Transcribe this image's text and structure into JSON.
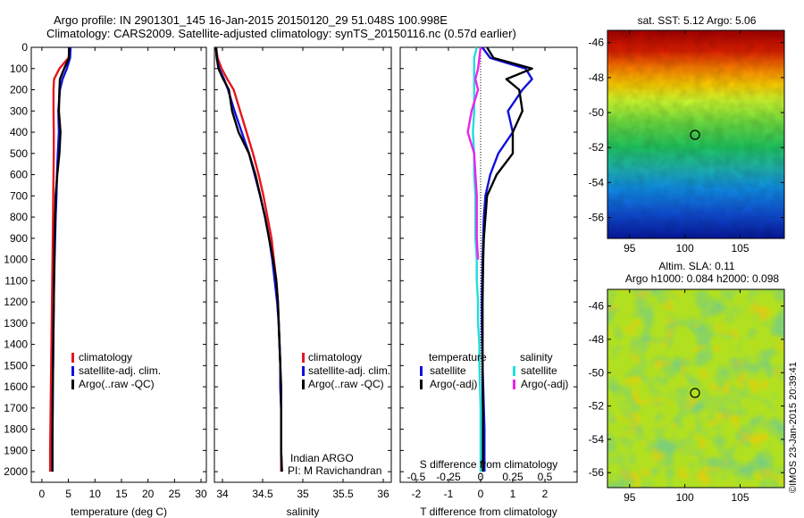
{
  "title": {
    "line1": "Argo profile: IN 2901301_145 16-Jan-2015 20150120_29 51.048S 100.998E",
    "line2": "Climatology: CARS2009. Satellite-adjusted climatology: synTS_20150116.nc (0.57d earlier)"
  },
  "depth_axis": {
    "ticks": [
      0,
      100,
      200,
      300,
      400,
      500,
      600,
      700,
      800,
      900,
      1000,
      1100,
      1200,
      1300,
      1400,
      1500,
      1600,
      1700,
      1800,
      1900,
      2000
    ]
  },
  "colors": {
    "climatology": "#e8141e",
    "satellite": "#1010dd",
    "argo": "#000000",
    "sat_salinity": "#22dddd",
    "argo_adj_salinity": "#ee22ee"
  },
  "temperature_panel": {
    "xlabel": "temperature (deg C)",
    "xticks": [
      "0",
      "5",
      "10",
      "15",
      "20",
      "25",
      "30"
    ],
    "legend": [
      "climatology",
      "satellite-adj. clim.",
      "Argo(..raw -QC)"
    ]
  },
  "salinity_panel": {
    "xlabel": "salinity",
    "xticks": [
      "34",
      "34.5",
      "35",
      "35.5",
      "36"
    ],
    "legend": [
      "climatology",
      "satellite-adj. clim.",
      "Argo(..raw -QC)"
    ],
    "note1": "Indian ARGO",
    "note2": "PI: M Ravichandran"
  },
  "difference_panel": {
    "xlabel": "T difference from climatology",
    "xticks": [
      "-2",
      "-1",
      "0",
      "1",
      "2"
    ],
    "top_label": "S difference from climatology",
    "s_ticks": [
      "-0.5",
      "-0.25",
      "0",
      "0.25",
      "0.5"
    ],
    "legend_temperature": {
      "heading": "temperature",
      "items": [
        "satellite",
        "Argo(-adj)"
      ]
    },
    "legend_salinity": {
      "heading": "salinity",
      "items": [
        "satellite",
        "Argo(-adj)"
      ]
    }
  },
  "sst_map": {
    "title": "sat. SST: 5.12  Argo: 5.06",
    "lat_ticks": [
      "-46",
      "-48",
      "-50",
      "-52",
      "-54",
      "-56"
    ],
    "lon_ticks": [
      "95",
      "100",
      "105"
    ]
  },
  "sla_map": {
    "title1": "Altim. SLA: 0.11",
    "title2": "Argo h1000: 0.084 h2000: 0.098",
    "lat_ticks": [
      "-46",
      "-48",
      "-50",
      "-52",
      "-54",
      "-56"
    ],
    "lon_ticks": [
      "95",
      "100",
      "105"
    ]
  },
  "credit": "©IMOS 23-Jan-2015 20:39:41",
  "chart_data": [
    {
      "type": "line",
      "xlabel": "temperature (deg C)",
      "ylabel": "",
      "xlim": [
        -2,
        31
      ],
      "ylim": [
        2050,
        0
      ],
      "series": [
        {
          "name": "climatology",
          "x": [
            5.3,
            5.0,
            3.3,
            2.3,
            2.2,
            2.2,
            2.25,
            2.25,
            2.2,
            2.15,
            2.1,
            2.05,
            2.0,
            1.95,
            1.9,
            1.85,
            1.8,
            1.75,
            1.7,
            1.65,
            1.6,
            1.55,
            1.55
          ],
          "y": [
            0,
            50,
            100,
            150,
            200,
            300,
            400,
            500,
            600,
            700,
            800,
            900,
            1000,
            1100,
            1200,
            1300,
            1400,
            1500,
            1600,
            1700,
            1800,
            1900,
            2000
          ]
        },
        {
          "name": "satellite-adj. clim.",
          "x": [
            5.4,
            5.3,
            4.7,
            3.9,
            3.4,
            3.1,
            3.2,
            3.0,
            2.85,
            2.75,
            2.6,
            2.5,
            2.4,
            2.3,
            2.25,
            2.2,
            2.15,
            2.1,
            2.05,
            2.05,
            2.0,
            2.0,
            2.0
          ],
          "y": [
            0,
            50,
            100,
            150,
            200,
            300,
            400,
            500,
            600,
            700,
            800,
            900,
            1000,
            1100,
            1200,
            1300,
            1400,
            1500,
            1600,
            1700,
            1800,
            1900,
            2000
          ]
        },
        {
          "name": "Argo(..raw -QC)",
          "x": [
            5.1,
            5.1,
            4.2,
            3.4,
            3.3,
            3.2,
            3.5,
            3.3,
            2.9,
            2.6,
            2.5,
            2.4,
            2.35,
            2.3,
            2.25,
            2.2,
            2.15,
            2.1,
            2.05,
            2.0,
            2.0,
            1.95,
            1.95
          ],
          "y": [
            0,
            50,
            100,
            150,
            200,
            300,
            400,
            500,
            600,
            700,
            800,
            900,
            1000,
            1100,
            1200,
            1300,
            1400,
            1500,
            1600,
            1700,
            1800,
            1900,
            2000
          ]
        }
      ]
    },
    {
      "type": "line",
      "xlabel": "salinity",
      "ylabel": "",
      "xlim": [
        33.9,
        36.1
      ],
      "ylim": [
        2050,
        0
      ],
      "series": [
        {
          "name": "climatology",
          "x": [
            33.92,
            33.94,
            33.99,
            34.06,
            34.14,
            34.22,
            34.3,
            34.38,
            34.45,
            34.51,
            34.56,
            34.61,
            34.64,
            34.67,
            34.69,
            34.7,
            34.71,
            34.72,
            34.72,
            34.73,
            34.73,
            34.73,
            34.73
          ],
          "y": [
            0,
            50,
            100,
            150,
            200,
            300,
            400,
            500,
            600,
            700,
            800,
            900,
            1000,
            1100,
            1200,
            1300,
            1400,
            1500,
            1600,
            1700,
            1800,
            1900,
            2000
          ]
        },
        {
          "name": "satellite-adj. clim.",
          "x": [
            33.92,
            33.93,
            33.96,
            34.02,
            34.07,
            34.15,
            34.24,
            34.33,
            34.4,
            34.47,
            34.53,
            34.58,
            34.62,
            34.65,
            34.68,
            34.7,
            34.71,
            34.72,
            34.72,
            34.73,
            34.73,
            34.73,
            34.74
          ],
          "y": [
            0,
            50,
            100,
            150,
            200,
            300,
            400,
            500,
            600,
            700,
            800,
            900,
            1000,
            1100,
            1200,
            1300,
            1400,
            1500,
            1600,
            1700,
            1800,
            1900,
            2000
          ]
        },
        {
          "name": "Argo(..raw -QC)",
          "x": [
            33.92,
            33.93,
            33.95,
            34.01,
            34.08,
            34.12,
            34.2,
            34.33,
            34.41,
            34.47,
            34.53,
            34.58,
            34.63,
            34.67,
            34.69,
            34.7,
            34.71,
            34.72,
            34.73,
            34.73,
            34.73,
            34.73,
            34.74
          ],
          "y": [
            0,
            50,
            100,
            150,
            200,
            300,
            400,
            500,
            600,
            700,
            800,
            900,
            1000,
            1100,
            1200,
            1300,
            1400,
            1500,
            1600,
            1700,
            1800,
            1900,
            2000
          ]
        }
      ]
    },
    {
      "type": "line",
      "xlabel": "T difference from climatology",
      "ylabel": "",
      "xlim": [
        -2.5,
        3.0
      ],
      "ylim": [
        2050,
        0
      ],
      "secondary_x": {
        "label": "S difference from climatology",
        "lim": [
          -0.625,
          0.75
        ]
      },
      "series": [
        {
          "name": "temperature satellite",
          "axis": "T",
          "x": [
            0.05,
            0.3,
            1.4,
            1.6,
            1.3,
            0.85,
            1.0,
            0.55,
            0.3,
            0.15,
            0.1,
            0.08,
            0.06,
            0.05,
            0.04,
            0.04,
            0.05,
            0.06,
            0.08,
            0.1,
            0.12,
            0.12,
            0.12
          ],
          "y": [
            0,
            50,
            100,
            150,
            200,
            300,
            400,
            500,
            600,
            700,
            800,
            900,
            1000,
            1100,
            1200,
            1300,
            1400,
            1500,
            1600,
            1700,
            1800,
            1900,
            2000
          ]
        },
        {
          "name": "temperature Argo(-adj)",
          "axis": "T",
          "x": [
            0.2,
            0.4,
            1.6,
            0.8,
            1.2,
            1.3,
            1.0,
            1.0,
            0.5,
            0.2,
            0.15,
            0.1,
            0.08,
            0.07,
            0.06,
            0.06,
            0.06,
            0.06,
            0.06,
            0.07,
            0.07,
            0.07,
            0.07
          ],
          "y": [
            0,
            50,
            100,
            150,
            200,
            300,
            400,
            500,
            600,
            700,
            800,
            900,
            1000,
            1100,
            1200,
            1300,
            1400,
            1500,
            1600,
            1700,
            1800,
            1900,
            2000
          ]
        },
        {
          "name": "salinity satellite",
          "axis": "S",
          "x": [
            -0.03,
            -0.05,
            -0.05,
            -0.05,
            -0.05,
            -0.05,
            -0.06,
            -0.05,
            -0.05,
            -0.04,
            -0.04,
            -0.04,
            -0.03,
            -0.03,
            -0.02,
            -0.02,
            -0.01,
            -0.01,
            -0.005,
            0.0,
            0.0,
            0.0,
            0.0
          ],
          "y": [
            0,
            50,
            100,
            150,
            200,
            300,
            400,
            500,
            600,
            700,
            800,
            900,
            1000,
            1100,
            1200,
            1300,
            1400,
            1500,
            1600,
            1700,
            1800,
            1900,
            2000
          ]
        },
        {
          "name": "salinity Argo(-adj)",
          "axis": "S",
          "x": [
            0.0,
            -0.01,
            -0.02,
            -0.04,
            -0.02,
            -0.07,
            -0.1,
            -0.05,
            -0.04,
            -0.03,
            -0.03,
            -0.03,
            -0.02
          ],
          "y": [
            0,
            50,
            100,
            150,
            200,
            300,
            400,
            500,
            600,
            700,
            800,
            900,
            1000
          ]
        }
      ]
    }
  ]
}
